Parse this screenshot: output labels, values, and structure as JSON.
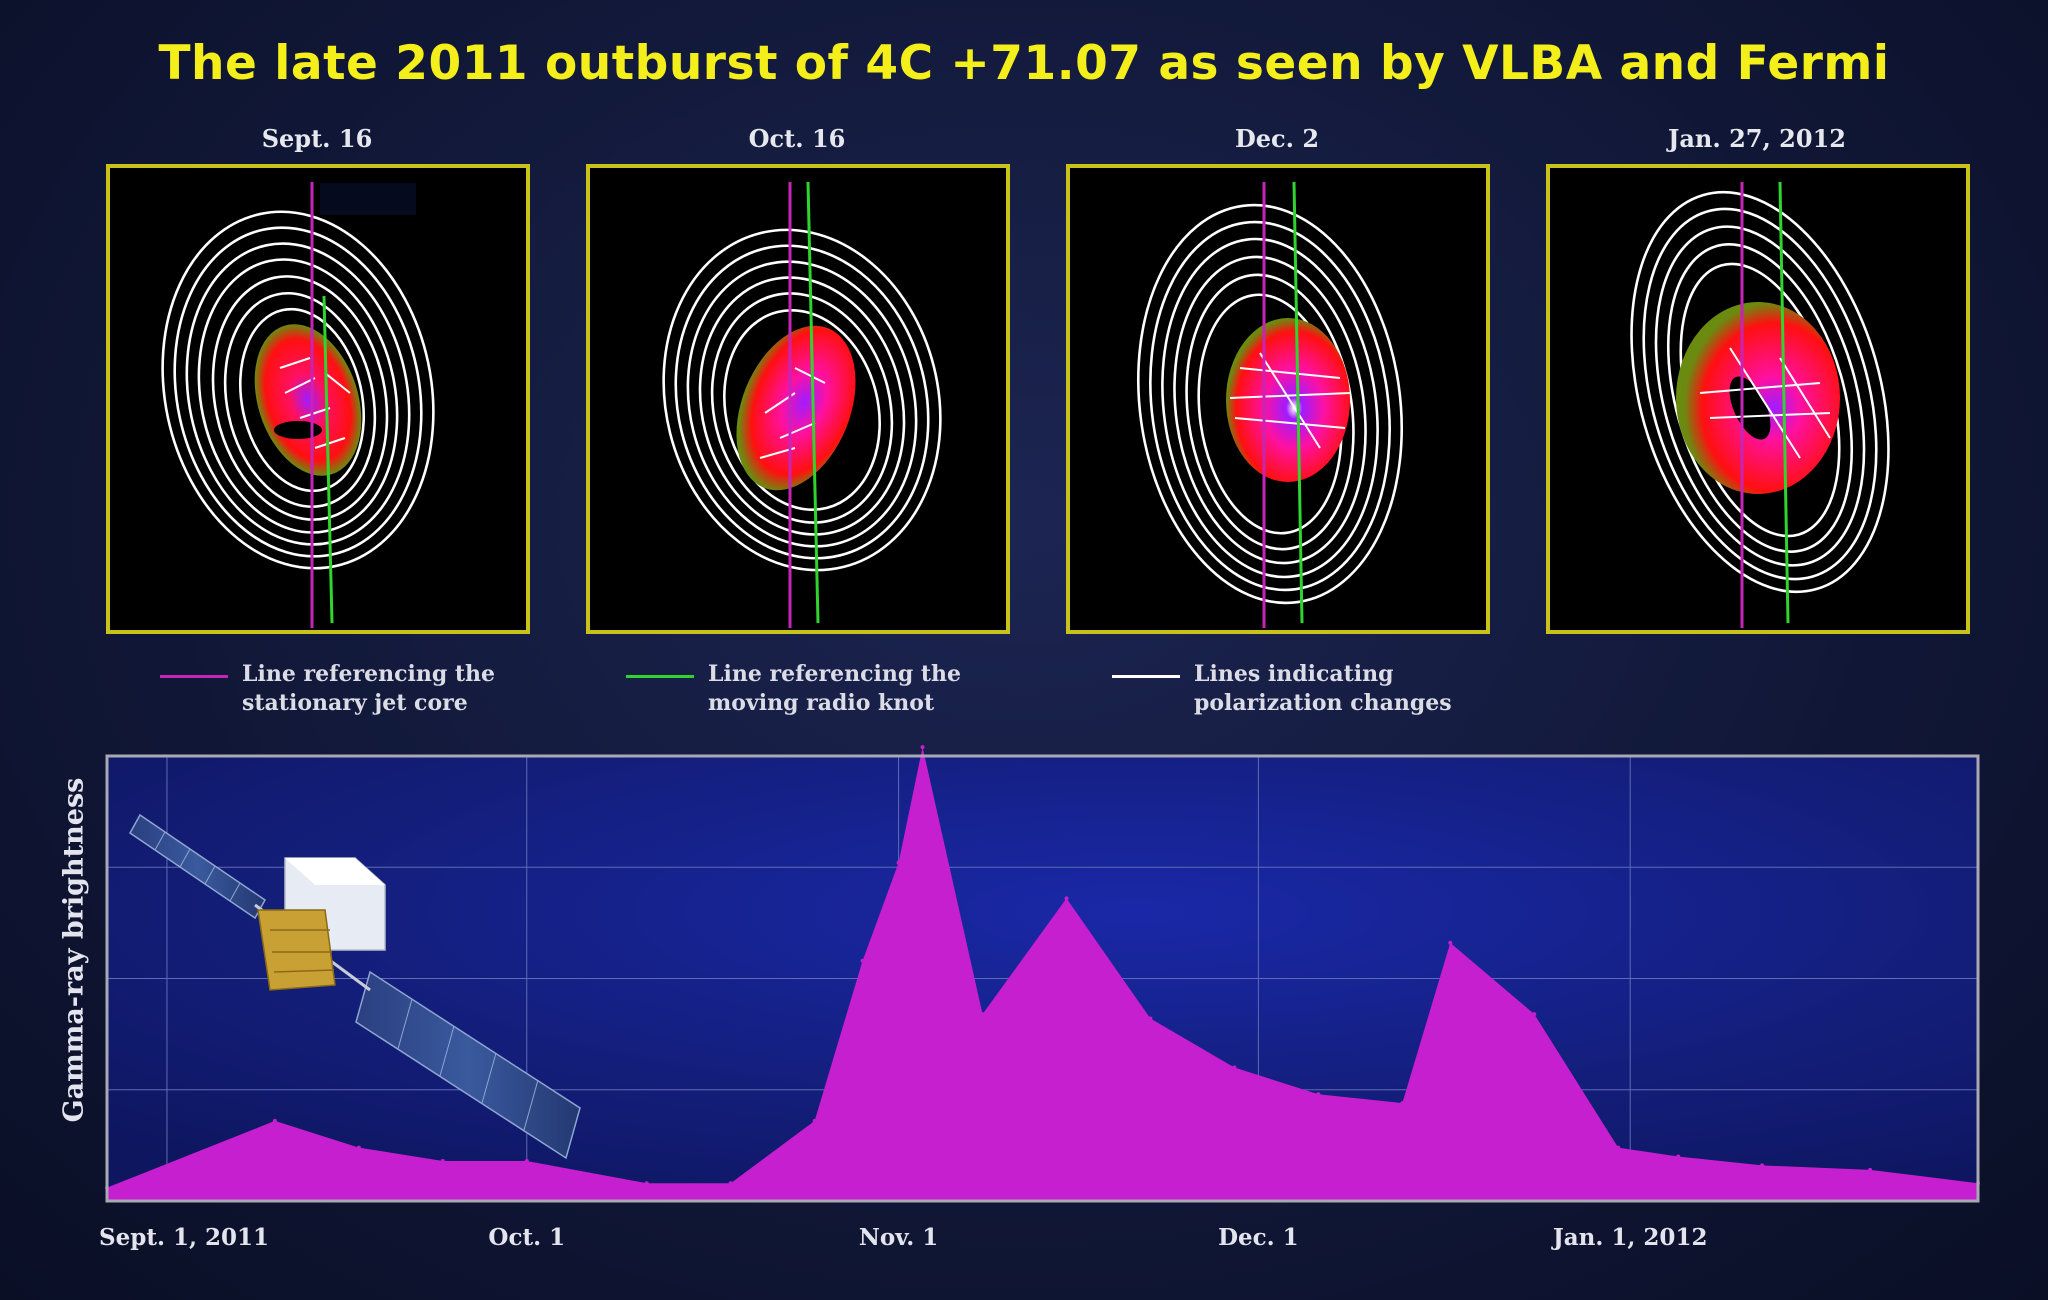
{
  "title": "The late 2011 outburst of 4C +71.07 as seen by VLBA and Fermi",
  "panels": [
    {
      "date": "Sept. 16"
    },
    {
      "date": "Oct. 16"
    },
    {
      "date": "Dec. 2"
    },
    {
      "date": "Jan. 27, 2012"
    }
  ],
  "legend": [
    {
      "line1": "Line referencing the",
      "line2": "stationary jet core",
      "color": "#c623b8"
    },
    {
      "line1": "Line referencing the",
      "line2": "moving radio knot",
      "color": "#2fd42f"
    },
    {
      "line1": "Lines indicating",
      "line2": "polarization changes",
      "color": "#ffffff"
    }
  ],
  "colors": {
    "title": "#f4ef1b",
    "panel_border": "#c9c21a",
    "area_fill": "#c61fcf",
    "chart_bg": "#131e7a"
  },
  "chart_data": {
    "type": "area",
    "ylabel": "Gamma-ray brightness",
    "xlabel": "",
    "x_ticks": [
      "Sept. 1, 2011",
      "Oct. 1",
      "Nov. 1",
      "Dec. 1",
      "Jan. 1, 2012"
    ],
    "x_tick_days": [
      0,
      30,
      61,
      91,
      122
    ],
    "x_range_days": [
      -5,
      151
    ],
    "ylim": [
      0,
      10
    ],
    "grid": true,
    "x_days": [
      -5,
      9,
      16,
      23,
      30,
      40,
      47,
      54,
      58,
      61,
      63,
      68,
      75,
      82,
      89,
      96,
      103,
      107,
      114,
      121,
      126,
      133,
      142,
      151
    ],
    "y": [
      0.3,
      1.8,
      1.2,
      0.9,
      0.9,
      0.4,
      0.4,
      1.8,
      5.4,
      7.6,
      10.2,
      4.2,
      6.8,
      4.1,
      3.0,
      2.4,
      2.2,
      5.8,
      4.2,
      1.2,
      1.0,
      0.8,
      0.7,
      0.4
    ]
  }
}
